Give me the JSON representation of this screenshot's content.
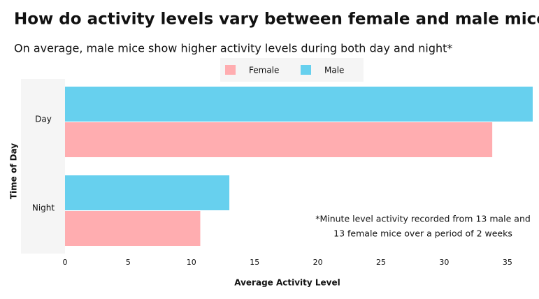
{
  "chart_data": {
    "type": "bar",
    "orientation": "horizontal",
    "title": "How do activity levels vary between female and male mice?",
    "subtitle": "On average, male mice show higher activity levels during both day and night*",
    "categories": [
      "Day",
      "Night"
    ],
    "series": [
      {
        "name": "Female",
        "color": "#ffadb0",
        "values": [
          33.8,
          10.7
        ]
      },
      {
        "name": "Male",
        "color": "#67d0ee",
        "values": [
          37.0,
          13.0
        ]
      }
    ],
    "xlim": [
      0,
      37
    ],
    "xticks": [
      0,
      5,
      10,
      15,
      20,
      25,
      30,
      35
    ],
    "x_label": "Average Activity Level",
    "y_label": "Time of Day",
    "legend": "top",
    "annotation": [
      "*Minute level activity recorded from 13 male and",
      "13 female mice over a period of 2 weeks"
    ]
  }
}
